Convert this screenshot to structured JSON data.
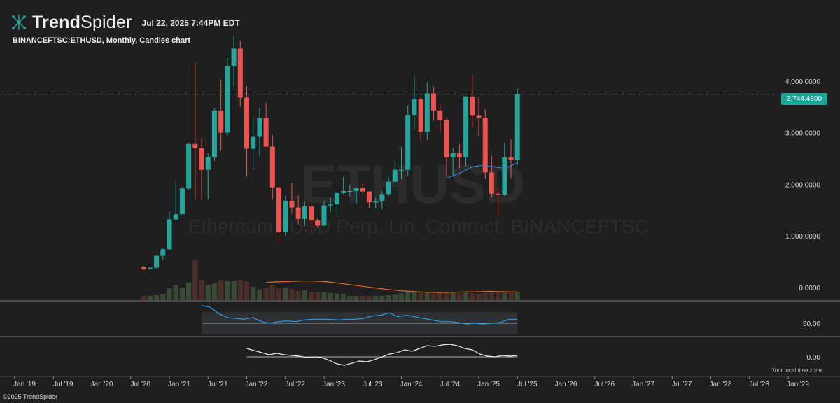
{
  "app": {
    "brand_bold": "Trend",
    "brand_light": "Spider",
    "timestamp": "Jul 22, 2025 7:44PM EDT",
    "subtitle": "BINANCEFTSC:ETHUSD, Monthly, Candles chart",
    "copyright": "©2025 TrendSpider",
    "local_time_note": "Your local time zone",
    "logo_icon": "network-nodes-icon"
  },
  "colors": {
    "background": "#1f1f1f",
    "up": "#26a69a",
    "down": "#ef5350",
    "badge": "#1fa394",
    "ma": "#3d7fd9",
    "vol_ma": "#e0662a",
    "rsi": "#2f9ae0"
  },
  "chart_data": {
    "type": "candlestick",
    "symbol": "BINANCEFTSC:ETHUSD",
    "interval": "Monthly",
    "watermark_symbol": "ETHUSD",
    "watermark_name": "Ethereum / USD Perp. Lin. Contract, BINANCEFTSC",
    "last_price": 3744.48,
    "last_price_label": "3,744.4800",
    "y_ticks": [
      {
        "value": 4000,
        "label": "4,000.0000"
      },
      {
        "value": 3000,
        "label": "3,000.0000"
      },
      {
        "value": 2000,
        "label": "2,000.0000"
      },
      {
        "value": 1000,
        "label": "1,000.0000"
      },
      {
        "value": 0,
        "label": "0.0000"
      }
    ],
    "x_ticks": [
      "Jan '19",
      "Jul '19",
      "Jan '20",
      "Jul '20",
      "Jan '21",
      "Jul '21",
      "Jan '22",
      "Jul '22",
      "Jan '23",
      "Jul '23",
      "Jan '24",
      "Jul '24",
      "Jan '25",
      "Jul '25",
      "Jan '26",
      "Jul '26",
      "Jan '27",
      "Jul '27",
      "Jan '28",
      "Jul '28",
      "Jan '29"
    ],
    "candles": [
      {
        "t": "2020-09",
        "o": 400,
        "h": 420,
        "l": 330,
        "c": 360
      },
      {
        "t": "2020-10",
        "o": 360,
        "h": 420,
        "l": 350,
        "c": 385
      },
      {
        "t": "2020-11",
        "o": 385,
        "h": 620,
        "l": 375,
        "c": 615
      },
      {
        "t": "2020-12",
        "o": 615,
        "h": 760,
        "l": 540,
        "c": 740
      },
      {
        "t": "2021-01",
        "o": 740,
        "h": 1470,
        "l": 720,
        "c": 1320
      },
      {
        "t": "2021-02",
        "o": 1320,
        "h": 2040,
        "l": 1300,
        "c": 1420
      },
      {
        "t": "2021-03",
        "o": 1420,
        "h": 1950,
        "l": 1430,
        "c": 1920
      },
      {
        "t": "2021-04",
        "o": 1920,
        "h": 2800,
        "l": 1900,
        "c": 2780
      },
      {
        "t": "2021-05",
        "o": 2780,
        "h": 4370,
        "l": 1700,
        "c": 2700
      },
      {
        "t": "2021-06",
        "o": 2700,
        "h": 2900,
        "l": 1700,
        "c": 2280
      },
      {
        "t": "2021-07",
        "o": 2280,
        "h": 2600,
        "l": 1700,
        "c": 2530
      },
      {
        "t": "2021-08",
        "o": 2530,
        "h": 3470,
        "l": 2450,
        "c": 3430
      },
      {
        "t": "2021-09",
        "o": 3430,
        "h": 4030,
        "l": 2650,
        "c": 3000
      },
      {
        "t": "2021-10",
        "o": 3000,
        "h": 4460,
        "l": 2950,
        "c": 4290
      },
      {
        "t": "2021-11",
        "o": 4290,
        "h": 4870,
        "l": 3900,
        "c": 4630
      },
      {
        "t": "2021-12",
        "o": 4630,
        "h": 4780,
        "l": 3500,
        "c": 3680
      },
      {
        "t": "2022-01",
        "o": 3680,
        "h": 3900,
        "l": 2150,
        "c": 2690
      },
      {
        "t": "2022-02",
        "o": 2690,
        "h": 3280,
        "l": 2300,
        "c": 2920
      },
      {
        "t": "2022-03",
        "o": 2920,
        "h": 3480,
        "l": 2550,
        "c": 3280
      },
      {
        "t": "2022-04",
        "o": 3280,
        "h": 3580,
        "l": 2720,
        "c": 2730
      },
      {
        "t": "2022-05",
        "o": 2730,
        "h": 2950,
        "l": 1700,
        "c": 1940
      },
      {
        "t": "2022-06",
        "o": 1940,
        "h": 1970,
        "l": 880,
        "c": 1070
      },
      {
        "t": "2022-07",
        "o": 1070,
        "h": 1780,
        "l": 1000,
        "c": 1680
      },
      {
        "t": "2022-08",
        "o": 1680,
        "h": 2030,
        "l": 1420,
        "c": 1550
      },
      {
        "t": "2022-09",
        "o": 1550,
        "h": 1790,
        "l": 1220,
        "c": 1330
      },
      {
        "t": "2022-10",
        "o": 1330,
        "h": 1660,
        "l": 1190,
        "c": 1570
      },
      {
        "t": "2022-11",
        "o": 1570,
        "h": 1680,
        "l": 1070,
        "c": 1300
      },
      {
        "t": "2022-12",
        "o": 1300,
        "h": 1350,
        "l": 1160,
        "c": 1200
      },
      {
        "t": "2023-01",
        "o": 1200,
        "h": 1680,
        "l": 1190,
        "c": 1590
      },
      {
        "t": "2023-02",
        "o": 1590,
        "h": 1740,
        "l": 1460,
        "c": 1610
      },
      {
        "t": "2023-03",
        "o": 1610,
        "h": 1860,
        "l": 1370,
        "c": 1830
      },
      {
        "t": "2023-04",
        "o": 1830,
        "h": 2140,
        "l": 1800,
        "c": 1870
      },
      {
        "t": "2023-05",
        "o": 1870,
        "h": 2000,
        "l": 1760,
        "c": 1870
      },
      {
        "t": "2023-06",
        "o": 1870,
        "h": 1940,
        "l": 1620,
        "c": 1930
      },
      {
        "t": "2023-07",
        "o": 1930,
        "h": 2020,
        "l": 1820,
        "c": 1860
      },
      {
        "t": "2023-08",
        "o": 1860,
        "h": 1870,
        "l": 1540,
        "c": 1650
      },
      {
        "t": "2023-09",
        "o": 1650,
        "h": 1740,
        "l": 1530,
        "c": 1670
      },
      {
        "t": "2023-10",
        "o": 1670,
        "h": 1870,
        "l": 1520,
        "c": 1810
      },
      {
        "t": "2023-11",
        "o": 1810,
        "h": 2140,
        "l": 1780,
        "c": 2050
      },
      {
        "t": "2023-12",
        "o": 2050,
        "h": 2450,
        "l": 2050,
        "c": 2280
      },
      {
        "t": "2024-01",
        "o": 2280,
        "h": 2720,
        "l": 2100,
        "c": 2280
      },
      {
        "t": "2024-02",
        "o": 2280,
        "h": 3530,
        "l": 2170,
        "c": 3340
      },
      {
        "t": "2024-03",
        "o": 3340,
        "h": 4100,
        "l": 3050,
        "c": 3650
      },
      {
        "t": "2024-04",
        "o": 3650,
        "h": 3700,
        "l": 2850,
        "c": 3020
      },
      {
        "t": "2024-05",
        "o": 3020,
        "h": 3980,
        "l": 2860,
        "c": 3760
      },
      {
        "t": "2024-06",
        "o": 3760,
        "h": 3890,
        "l": 3240,
        "c": 3430
      },
      {
        "t": "2024-07",
        "o": 3430,
        "h": 3560,
        "l": 3000,
        "c": 3250
      },
      {
        "t": "2024-08",
        "o": 3250,
        "h": 3300,
        "l": 2120,
        "c": 2520
      },
      {
        "t": "2024-09",
        "o": 2520,
        "h": 2700,
        "l": 2150,
        "c": 2600
      },
      {
        "t": "2024-10",
        "o": 2600,
        "h": 2780,
        "l": 2320,
        "c": 2520
      },
      {
        "t": "2024-11",
        "o": 2520,
        "h": 3720,
        "l": 2350,
        "c": 3700
      },
      {
        "t": "2024-12",
        "o": 3700,
        "h": 4110,
        "l": 3100,
        "c": 3330
      },
      {
        "t": "2025-01",
        "o": 3330,
        "h": 3700,
        "l": 2920,
        "c": 3290
      },
      {
        "t": "2025-02",
        "o": 3290,
        "h": 3450,
        "l": 2100,
        "c": 2230
      },
      {
        "t": "2025-03",
        "o": 2230,
        "h": 2550,
        "l": 1750,
        "c": 1820
      },
      {
        "t": "2025-04",
        "o": 1820,
        "h": 1960,
        "l": 1380,
        "c": 1800
      },
      {
        "t": "2025-05",
        "o": 1800,
        "h": 2800,
        "l": 1770,
        "c": 2520
      },
      {
        "t": "2025-06",
        "o": 2520,
        "h": 2870,
        "l": 2110,
        "c": 2480
      },
      {
        "t": "2025-07",
        "o": 2480,
        "h": 3860,
        "l": 2370,
        "c": 3744
      }
    ],
    "ma_line": [
      2120,
      2150,
      2180,
      2210,
      2250,
      2290,
      2330,
      2350,
      2360,
      2360,
      2350,
      2340,
      2330,
      2320,
      2315,
      2340,
      2380,
      2420
    ],
    "volume": [
      10,
      10,
      12,
      15,
      28,
      35,
      30,
      42,
      95,
      48,
      35,
      40,
      48,
      45,
      46,
      48,
      45,
      32,
      26,
      30,
      35,
      28,
      30,
      26,
      22,
      23,
      20,
      20,
      19,
      17,
      16,
      15,
      10,
      10,
      10,
      10,
      10,
      10,
      12,
      14,
      16,
      20,
      22,
      20,
      18,
      16,
      18,
      20,
      18,
      17,
      18,
      16,
      15,
      17,
      18,
      18,
      19,
      19,
      18
    ],
    "volume_ma": [
      60,
      62,
      63,
      64,
      65,
      65,
      64,
      62,
      58,
      54,
      50,
      46,
      42,
      38,
      35,
      32,
      30,
      28,
      27,
      26,
      26,
      27,
      28,
      28,
      29,
      30,
      29,
      28,
      28
    ],
    "rsi": {
      "label": "50.00",
      "values": [
        72,
        70,
        62,
        57,
        56,
        55,
        57,
        52,
        50,
        52,
        53,
        52,
        54,
        55,
        55,
        55,
        54,
        55,
        55,
        56,
        59,
        60,
        63,
        58,
        60,
        58,
        56,
        54,
        52,
        52,
        51,
        49,
        50,
        49,
        50,
        51,
        55,
        55
      ]
    },
    "oscillator": {
      "label": "0.00",
      "values": [
        0.12,
        0.09,
        0.06,
        0.03,
        0.05,
        0.03,
        0.02,
        0.01,
        -0.01,
        0.0,
        -0.01,
        -0.05,
        -0.1,
        -0.12,
        -0.09,
        -0.06,
        -0.07,
        -0.04,
        0.0,
        0.04,
        0.06,
        0.1,
        0.08,
        0.12,
        0.16,
        0.15,
        0.17,
        0.18,
        0.16,
        0.12,
        0.1,
        0.04,
        0.01,
        0.0,
        0.02,
        0.01,
        0.02
      ]
    }
  }
}
